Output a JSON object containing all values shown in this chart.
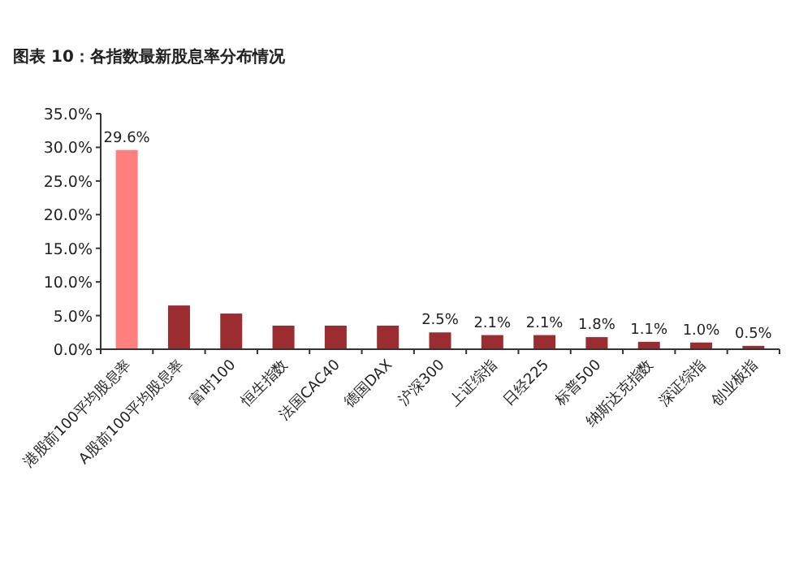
{
  "chart_data": {
    "type": "bar",
    "title": "图表 10：各指数最新股息率分布情况",
    "categories": [
      "港股前100平均股息率",
      "A股前100平均股息率",
      "富时100",
      "恒生指数",
      "法国CAC40",
      "德国DAX",
      "沪深300",
      "上证综指",
      "日经225",
      "标普500",
      "纳斯达克指数",
      "深证综指",
      "创业板指"
    ],
    "values": [
      29.6,
      6.5,
      5.3,
      3.5,
      3.5,
      3.5,
      2.5,
      2.1,
      2.1,
      1.8,
      1.1,
      1.0,
      0.5
    ],
    "colors": [
      "#ff7f7f",
      "#9b2d30",
      "#9b2d30",
      "#9b2d30",
      "#9b2d30",
      "#9b2d30",
      "#9b2d30",
      "#9b2d30",
      "#9b2d30",
      "#9b2d30",
      "#9b2d30",
      "#9b2d30",
      "#9b2d30"
    ],
    "value_labels": [
      "29.6%",
      null,
      null,
      null,
      null,
      null,
      "2.5%",
      "2.1%",
      "2.1%",
      "1.8%",
      "1.1%",
      "1.0%",
      "0.5%"
    ],
    "ylim": [
      0,
      35
    ],
    "yticks": [
      {
        "value": 0,
        "label": "0.0%"
      },
      {
        "value": 5,
        "label": "5.0%"
      },
      {
        "value": 10,
        "label": "10.0%"
      },
      {
        "value": 15,
        "label": "15.0%"
      },
      {
        "value": 20,
        "label": "20.0%"
      },
      {
        "value": 25,
        "label": "25.0%"
      },
      {
        "value": 30,
        "label": "30.0%"
      },
      {
        "value": 35,
        "label": "35.0%"
      }
    ],
    "grid": false
  }
}
